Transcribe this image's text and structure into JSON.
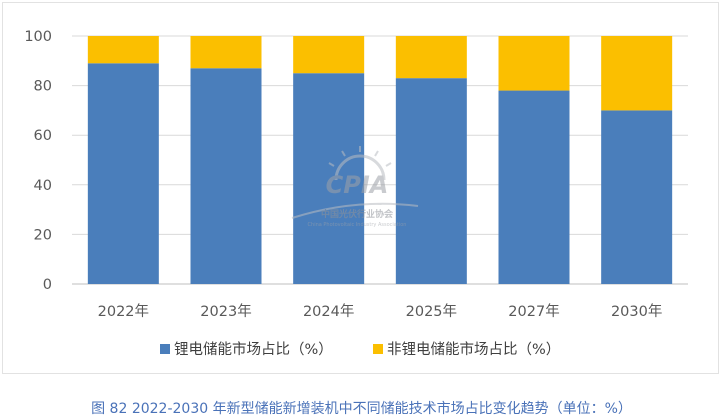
{
  "chart_data": {
    "type": "bar",
    "stacked": true,
    "categories": [
      "2022年",
      "2023年",
      "2024年",
      "2025年",
      "2027年",
      "2030年"
    ],
    "series": [
      {
        "name": "锂电储能市场占比（%）",
        "color": "#4a7ebb",
        "values": [
          89,
          87,
          85,
          83,
          78,
          70
        ]
      },
      {
        "name": "非锂电储能市场占比（%）",
        "color": "#fbbf00",
        "values": [
          11,
          13,
          15,
          17,
          22,
          30
        ]
      }
    ],
    "ylim": [
      0,
      100
    ],
    "yticks": [
      0,
      20,
      40,
      60,
      80,
      100
    ],
    "gridlines": true,
    "legend": "bottom"
  },
  "watermark": {
    "logo": "CPIA",
    "name": "中国光伏行业协会",
    "sub": "China Photovoltaic Industry Association"
  },
  "caption": "图 82   2022-2030 年新型储能新增装机中不同储能技术市场占比变化趋势（单位：%）"
}
